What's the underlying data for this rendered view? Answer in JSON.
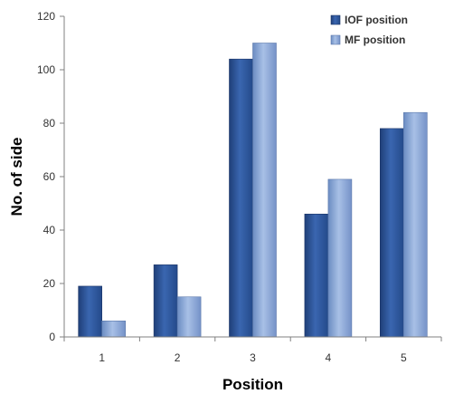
{
  "chart_data": {
    "type": "bar",
    "title": "",
    "xlabel": "Position",
    "ylabel": "No. of side",
    "categories": [
      "1",
      "2",
      "3",
      "4",
      "5"
    ],
    "series": [
      {
        "name": "IOF position",
        "values": [
          19,
          27,
          104,
          46,
          78
        ],
        "color": "#2f5597"
      },
      {
        "name": "MF position",
        "values": [
          6,
          15,
          110,
          59,
          84
        ],
        "color": "#7f9fd0"
      }
    ],
    "ylim": [
      0,
      120
    ],
    "yticks": [
      0,
      20,
      40,
      60,
      80,
      100,
      120
    ],
    "grid": false,
    "legend": "top-right"
  }
}
